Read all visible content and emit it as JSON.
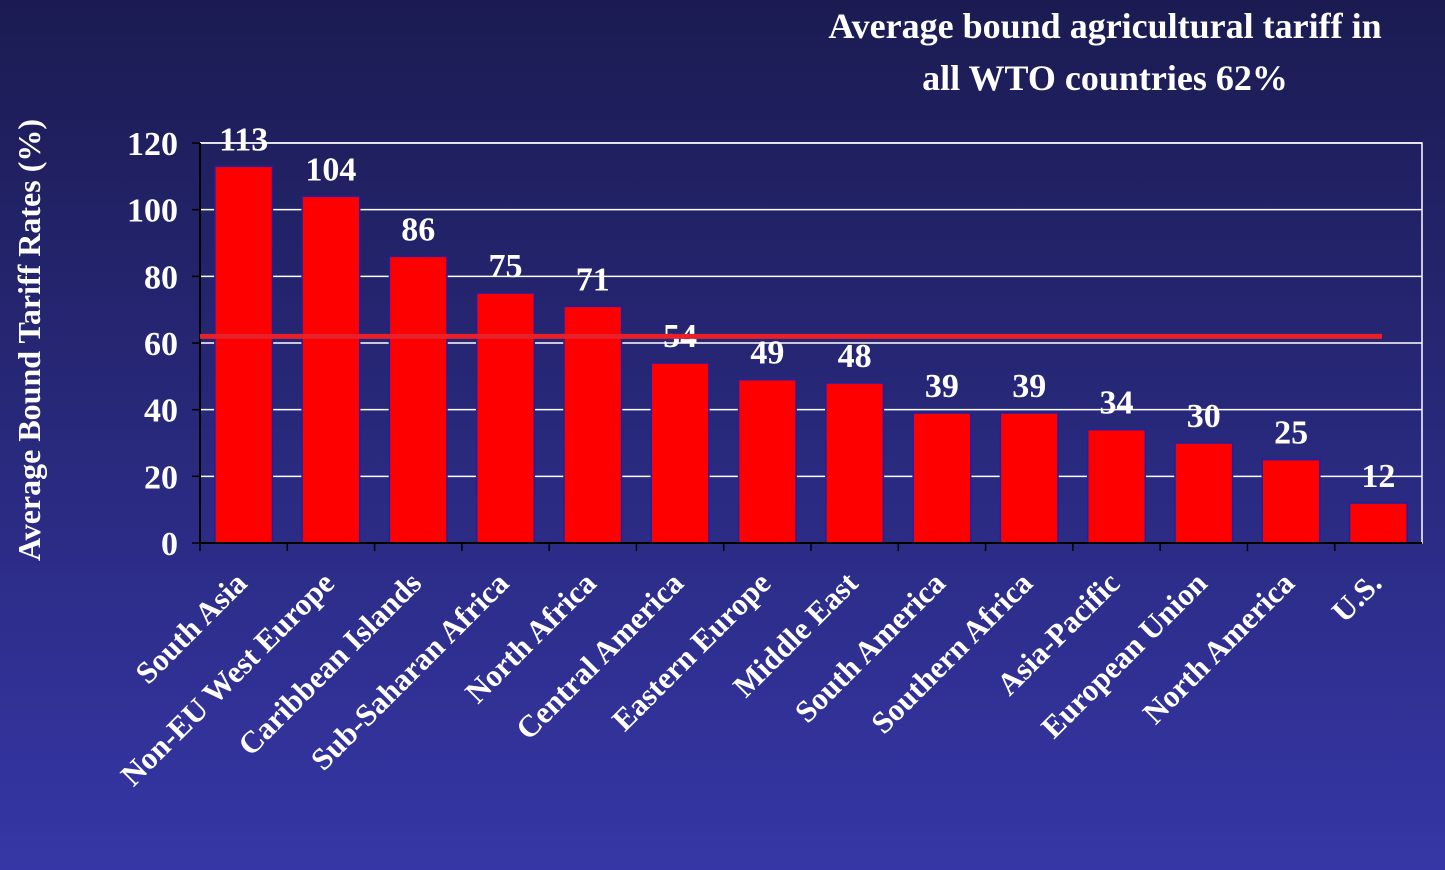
{
  "chart_data": {
    "type": "bar",
    "annotation": [
      "Average bound agricultural tariff in",
      "all WTO countries 62%"
    ],
    "y_label": "Average Bound Tariff Rates (%)",
    "categories": [
      "South Asia",
      "Non-EU West Europe",
      "Caribbean Islands",
      "Sub-Saharan Africa",
      "North Africa",
      "Central America",
      "Eastern Europe",
      "Middle East",
      "South America",
      "Southern Africa",
      "Asia-Pacific",
      "European Union",
      "North America",
      "U.S."
    ],
    "values": [
      113,
      104,
      86,
      75,
      71,
      54,
      49,
      48,
      39,
      39,
      34,
      30,
      25,
      12
    ],
    "color": "#ff0000",
    "reference_line": 62,
    "reference_color": "#e8202a",
    "ylim": [
      0,
      120
    ],
    "yticks": [
      0,
      20,
      40,
      60,
      80,
      100,
      120
    ],
    "grid": true
  }
}
